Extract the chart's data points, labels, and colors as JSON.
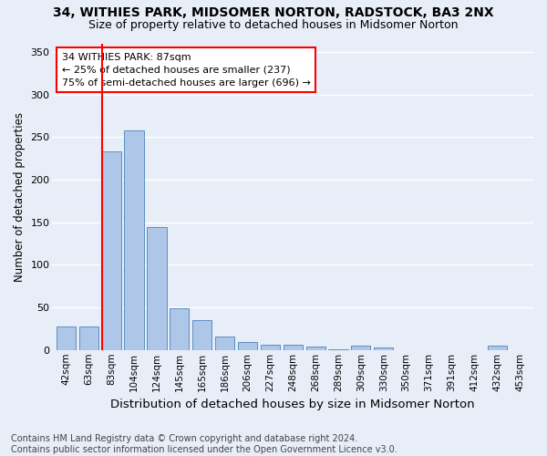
{
  "title1": "34, WITHIES PARK, MIDSOMER NORTON, RADSTOCK, BA3 2NX",
  "title2": "Size of property relative to detached houses in Midsomer Norton",
  "xlabel": "Distribution of detached houses by size in Midsomer Norton",
  "ylabel": "Number of detached properties",
  "footnote": "Contains HM Land Registry data © Crown copyright and database right 2024.\nContains public sector information licensed under the Open Government Licence v3.0.",
  "categories": [
    "42sqm",
    "63sqm",
    "83sqm",
    "104sqm",
    "124sqm",
    "145sqm",
    "165sqm",
    "186sqm",
    "206sqm",
    "227sqm",
    "248sqm",
    "268sqm",
    "289sqm",
    "309sqm",
    "330sqm",
    "350sqm",
    "371sqm",
    "391sqm",
    "412sqm",
    "432sqm",
    "453sqm"
  ],
  "values": [
    28,
    28,
    233,
    258,
    144,
    49,
    35,
    16,
    9,
    6,
    6,
    4,
    1,
    5,
    3,
    0,
    0,
    0,
    0,
    5,
    0
  ],
  "bar_color": "#aec6e8",
  "bar_edge_color": "#5a8fc2",
  "background_color": "#e8eef8",
  "grid_color": "#ffffff",
  "vline_color": "red",
  "annotation_line1": "34 WITHIES PARK: 87sqm",
  "annotation_line2": "← 25% of detached houses are smaller (237)",
  "annotation_line3": "75% of semi-detached houses are larger (696) →",
  "annotation_box_color": "white",
  "annotation_box_edge": "red",
  "ylim": [
    0,
    360
  ],
  "yticks": [
    0,
    50,
    100,
    150,
    200,
    250,
    300,
    350
  ],
  "title1_fontsize": 10,
  "title2_fontsize": 9,
  "xlabel_fontsize": 9.5,
  "ylabel_fontsize": 8.5,
  "annotation_fontsize": 8,
  "footnote_fontsize": 7,
  "tick_fontsize": 8,
  "xtick_fontsize": 7.5
}
